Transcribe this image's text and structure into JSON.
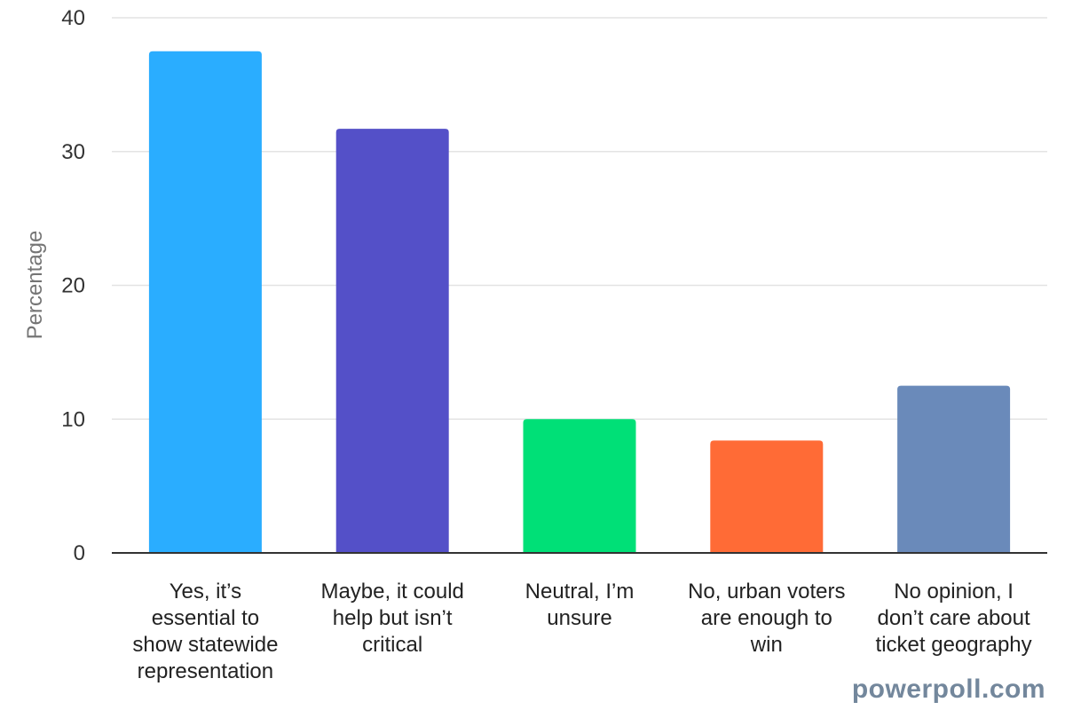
{
  "chart_data": {
    "type": "bar",
    "ylabel": "Percentage",
    "ylim": [
      0,
      40
    ],
    "yticks": [
      0,
      10,
      20,
      30,
      40
    ],
    "grid": true,
    "categories": [
      "Yes, it’s essential to show statewide representation",
      "Maybe, it could help but isn’t critical",
      "Neutral, I’m unsure",
      "No, urban voters are enough to win",
      "No opinion, I don’t care about ticket geography"
    ],
    "category_lines": [
      [
        "Yes, it’s",
        "essential to",
        "show statewide",
        "representation"
      ],
      [
        "Maybe, it could",
        "help but isn’t",
        "critical"
      ],
      [
        "Neutral, I’m",
        "unsure"
      ],
      [
        "No, urban voters",
        "are enough to",
        "win"
      ],
      [
        "No opinion, I",
        "don’t care about",
        "ticket geography"
      ]
    ],
    "values": [
      37.5,
      31.7,
      10.0,
      8.4,
      12.5
    ],
    "colors": [
      "#2aadff",
      "#5450c8",
      "#00e077",
      "#ff6b36",
      "#6a8aba"
    ]
  },
  "watermark": "powerpoll.com"
}
